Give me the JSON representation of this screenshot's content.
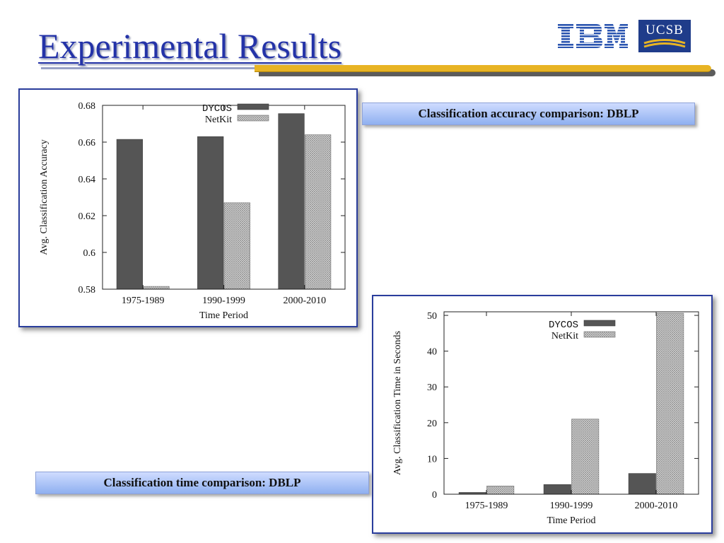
{
  "slide": {
    "title": "Experimental Results",
    "logos": {
      "ibm": "IBM",
      "ucsb": "UCSB"
    },
    "captions": {
      "accuracy": "Classification accuracy comparison: DBLP",
      "time": "Classification time comparison: DBLP"
    },
    "colors": {
      "title": "#2433a8",
      "box_border": "#2a3d9c",
      "rule_accent": "#e8b424",
      "dycos_bar": "#555555",
      "netkit_bar": "hatched-gray"
    }
  },
  "chart_data": [
    {
      "type": "bar",
      "categories": [
        "1975-1989",
        "1990-1999",
        "2000-2010"
      ],
      "series": [
        {
          "name": "DYCOS",
          "values": [
            0.6615,
            0.663,
            0.6755
          ]
        },
        {
          "name": "NetKit",
          "values": [
            0.5815,
            0.627,
            0.664
          ]
        }
      ],
      "xlabel": "Time Period",
      "ylabel": "Avg. Classification Accuracy",
      "ylim": [
        0.58,
        0.68
      ],
      "yticks": [
        0.58,
        0.6,
        0.62,
        0.64,
        0.66,
        0.68
      ],
      "ytick_labels": [
        "0.58",
        "0.6",
        "0.62",
        "0.64",
        "0.66",
        "0.68"
      ],
      "grid": false,
      "legend": "top-right"
    },
    {
      "type": "bar",
      "categories": [
        "1975-1989",
        "1990-1999",
        "2000-2010"
      ],
      "series": [
        {
          "name": "DYCOS",
          "values": [
            0.5,
            2.7,
            5.8
          ]
        },
        {
          "name": "NetKit",
          "values": [
            2.3,
            21.0,
            50.6
          ]
        }
      ],
      "xlabel": "Time Period",
      "ylabel": "Avg. Classification Time in Seconds",
      "ylim": [
        0,
        51
      ],
      "yticks": [
        0,
        10,
        20,
        30,
        40,
        50
      ],
      "ytick_labels": [
        "0",
        "10",
        "20",
        "30",
        "40",
        "50"
      ],
      "grid": false,
      "legend": "top-right"
    }
  ]
}
